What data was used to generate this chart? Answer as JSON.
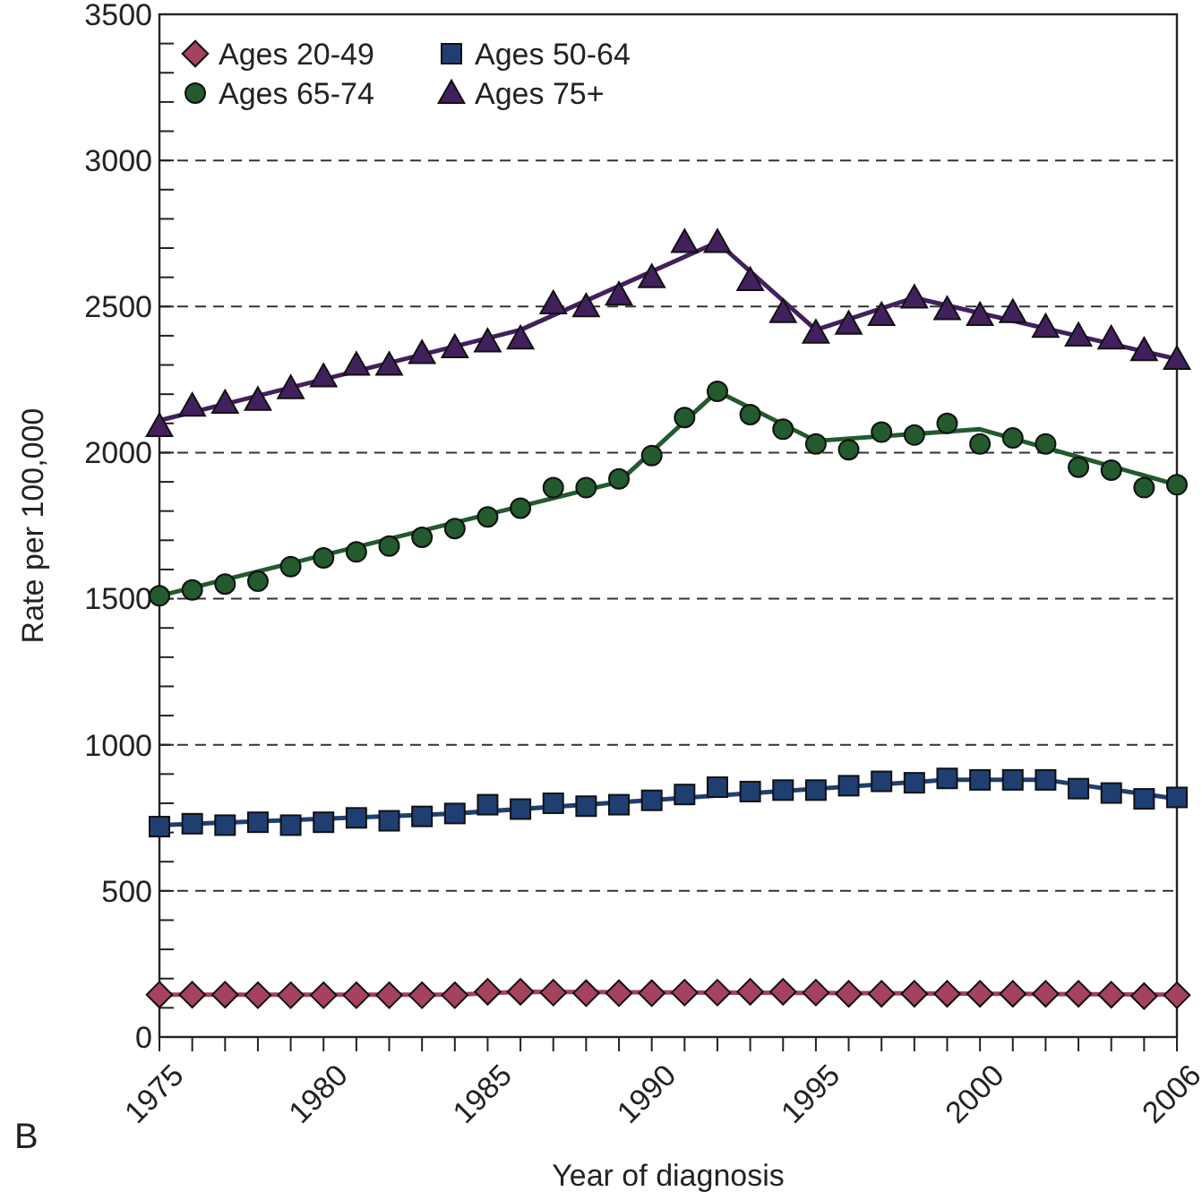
{
  "chart_data": {
    "type": "scatter",
    "xlabel": "Year of diagnosis",
    "ylabel": "Rate per 100,000",
    "annotations": [
      "B"
    ],
    "xlim": [
      1975,
      2006
    ],
    "xticks": [
      1975,
      {
        "value": 1976,
        "label": null
      },
      {
        "value": 1977,
        "label": null
      },
      {
        "value": 1978,
        "label": null
      },
      {
        "value": 1979,
        "label": null
      },
      1980,
      {
        "value": 1981,
        "label": null
      },
      {
        "value": 1982,
        "label": null
      },
      {
        "value": 1983,
        "label": null
      },
      {
        "value": 1984,
        "label": null
      },
      1985,
      {
        "value": 1986,
        "label": null
      },
      {
        "value": 1987,
        "label": null
      },
      {
        "value": 1988,
        "label": null
      },
      {
        "value": 1989,
        "label": null
      },
      1990,
      {
        "value": 1991,
        "label": null
      },
      {
        "value": 1992,
        "label": null
      },
      {
        "value": 1993,
        "label": null
      },
      {
        "value": 1994,
        "label": null
      },
      1995,
      {
        "value": 1996,
        "label": null
      },
      {
        "value": 1997,
        "label": null
      },
      {
        "value": 1998,
        "label": null
      },
      {
        "value": 1999,
        "label": null
      },
      2000,
      {
        "value": 2001,
        "label": null
      },
      {
        "value": 2002,
        "label": null
      },
      {
        "value": 2003,
        "label": null
      },
      {
        "value": 2004,
        "label": null
      },
      {
        "value": 2005,
        "label": null
      },
      2006
    ],
    "ylim": [
      0,
      3500
    ],
    "yticks": [
      0,
      {
        "value": 100,
        "label": null
      },
      {
        "value": 200,
        "label": null
      },
      {
        "value": 300,
        "label": null
      },
      {
        "value": 400,
        "label": null
      },
      500,
      {
        "value": 600,
        "label": null
      },
      {
        "value": 700,
        "label": null
      },
      {
        "value": 800,
        "label": null
      },
      {
        "value": 900,
        "label": null
      },
      1000,
      {
        "value": 1100,
        "label": null
      },
      {
        "value": 1200,
        "label": null
      },
      {
        "value": 1300,
        "label": null
      },
      {
        "value": 1400,
        "label": null
      },
      1500,
      {
        "value": 1600,
        "label": null
      },
      {
        "value": 1700,
        "label": null
      },
      {
        "value": 1800,
        "label": null
      },
      {
        "value": 1900,
        "label": null
      },
      2000,
      {
        "value": 2100,
        "label": null
      },
      {
        "value": 2200,
        "label": null
      },
      {
        "value": 2300,
        "label": null
      },
      {
        "value": 2400,
        "label": null
      },
      2500,
      {
        "value": 2600,
        "label": null
      },
      {
        "value": 2700,
        "label": null
      },
      {
        "value": 2800,
        "label": null
      },
      {
        "value": 2900,
        "label": null
      },
      3000,
      {
        "value": 3100,
        "label": null
      },
      {
        "value": 3200,
        "label": null
      },
      {
        "value": 3300,
        "label": null
      },
      {
        "value": 3400,
        "label": null
      },
      3500
    ],
    "grid": "y",
    "legend": "top left",
    "x": [
      1975,
      1976,
      1977,
      1978,
      1979,
      1980,
      1981,
      1982,
      1983,
      1984,
      1985,
      1986,
      1987,
      1988,
      1989,
      1990,
      1991,
      1992,
      1993,
      1994,
      1995,
      1996,
      1997,
      1998,
      1999,
      2000,
      2001,
      2002,
      2003,
      2004,
      2005,
      2006
    ],
    "series": [
      {
        "name": "Ages 20-49",
        "color": "#a5425e",
        "marker": "diamond",
        "values": [
          145,
          145,
          145,
          143,
          143,
          143,
          143,
          143,
          143,
          143,
          155,
          155,
          152,
          150,
          150,
          150,
          152,
          152,
          155,
          155,
          152,
          148,
          148,
          148,
          148,
          148,
          148,
          148,
          148,
          145,
          140,
          143
        ]
      },
      {
        "name": "Ages 50-64",
        "color": "#1f3f73",
        "marker": "square",
        "values": [
          720,
          730,
          725,
          735,
          725,
          735,
          750,
          740,
          755,
          765,
          795,
          780,
          800,
          790,
          795,
          810,
          830,
          855,
          840,
          845,
          845,
          860,
          875,
          870,
          885,
          880,
          880,
          880,
          850,
          835,
          815,
          820
        ]
      },
      {
        "name": "Ages 65-74",
        "color": "#235a2e",
        "marker": "circle",
        "values": [
          1510,
          1530,
          1550,
          1560,
          1610,
          1640,
          1660,
          1680,
          1710,
          1740,
          1780,
          1810,
          1880,
          1880,
          1910,
          1990,
          2120,
          2210,
          2130,
          2080,
          2030,
          2010,
          2070,
          2060,
          2100,
          2030,
          2050,
          2030,
          1950,
          1940,
          1880,
          1890
        ]
      },
      {
        "name": "Ages 75+",
        "color": "#42205e",
        "marker": "triangle",
        "values": [
          2090,
          2160,
          2170,
          2180,
          2220,
          2260,
          2300,
          2300,
          2340,
          2360,
          2380,
          2390,
          2510,
          2500,
          2540,
          2600,
          2720,
          2720,
          2590,
          2480,
          2410,
          2440,
          2470,
          2530,
          2490,
          2470,
          2480,
          2430,
          2400,
          2390,
          2350,
          2320
        ]
      },
      {
        "type": "line",
        "color": "#a5425e",
        "x": [
          1975,
          1984,
          1986,
          2006
        ],
        "values": [
          145,
          145,
          155,
          145
        ]
      },
      {
        "type": "line",
        "color": "#1f3f73",
        "x": [
          1975,
          1984,
          1999,
          2002,
          2006
        ],
        "values": [
          725,
          765,
          880,
          880,
          815
        ]
      },
      {
        "type": "line",
        "color": "#235a2e",
        "x": [
          1975,
          1989,
          1992,
          1995,
          2000,
          2006
        ],
        "values": [
          1510,
          1900,
          2210,
          2040,
          2080,
          1890
        ]
      },
      {
        "type": "line",
        "color": "#42205e",
        "x": [
          1975,
          1986,
          1992,
          1995,
          1998,
          2006
        ],
        "values": [
          2110,
          2420,
          2720,
          2420,
          2530,
          2320
        ]
      }
    ]
  }
}
